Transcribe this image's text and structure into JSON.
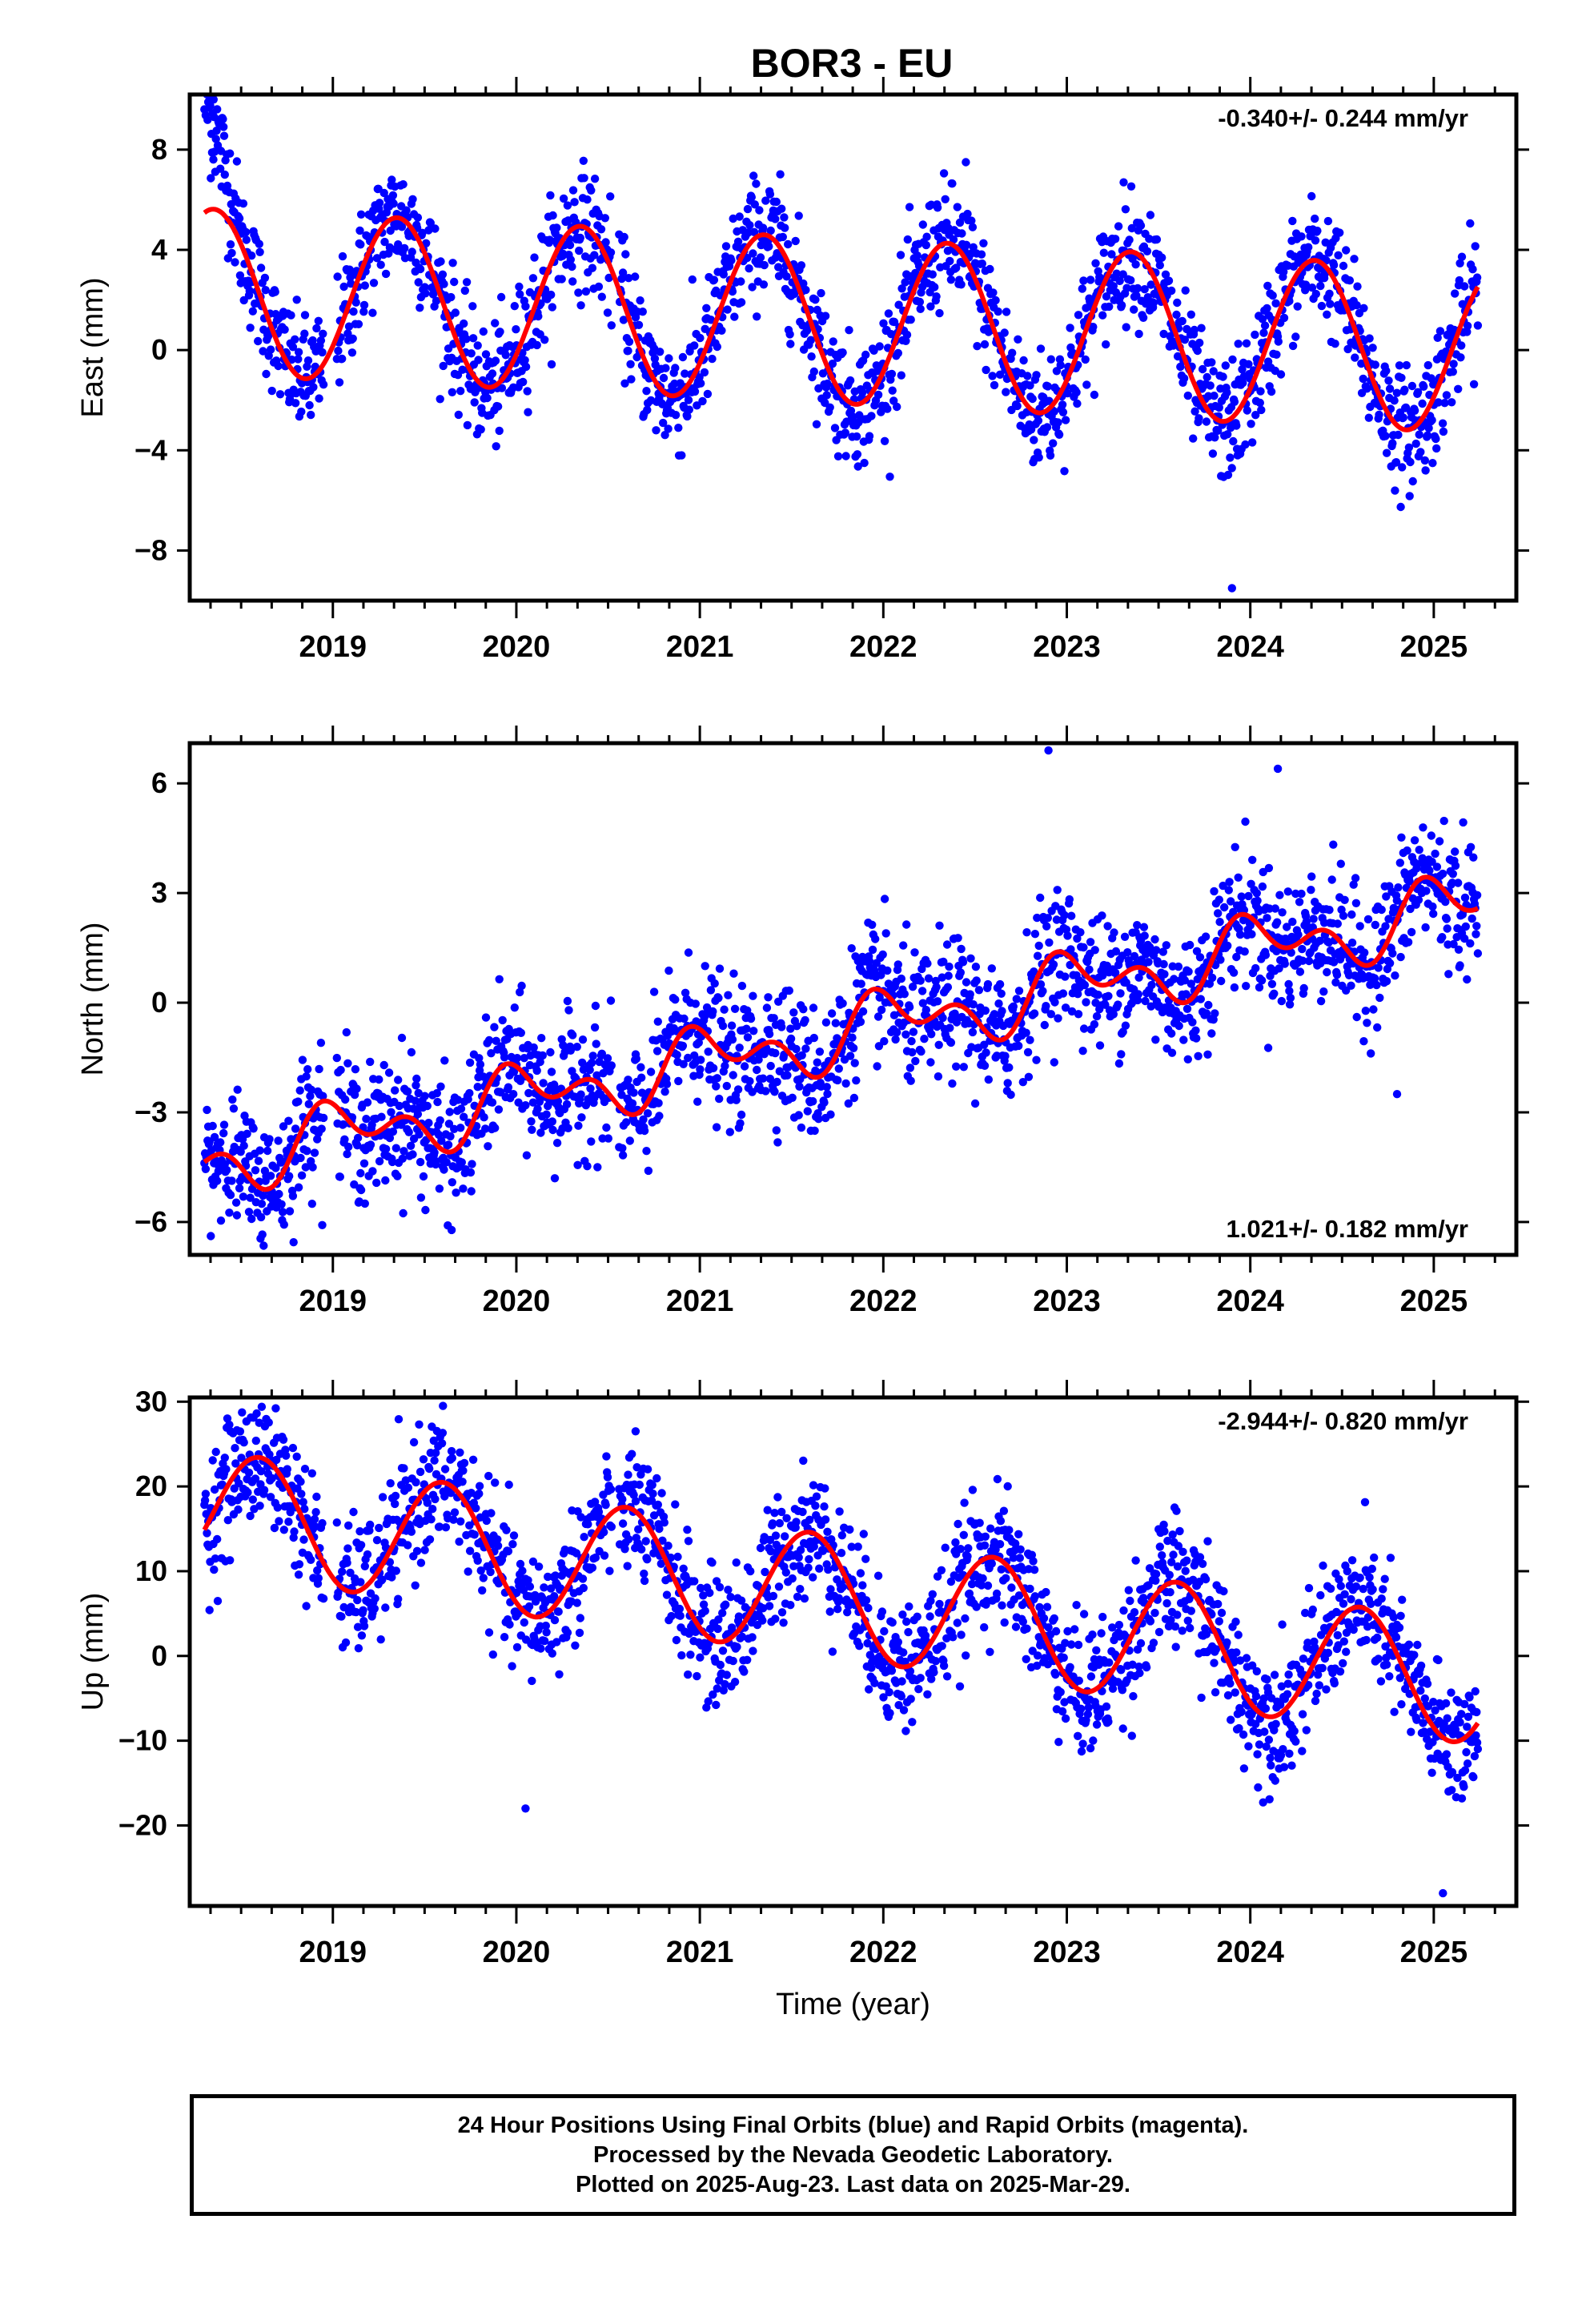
{
  "title": "BOR3 - EU",
  "colors": {
    "points": "#0000ff",
    "fit": "#ff0000",
    "frame": "#000000"
  },
  "chart_data": [
    {
      "type": "scatter",
      "component": "East",
      "ylabel": "East (mm)",
      "xlabel": "",
      "ylim": [
        -10,
        10.2
      ],
      "yticks": [
        -8,
        -4,
        0,
        4,
        8
      ],
      "xlim": [
        2018.22,
        2025.45
      ],
      "xticks": [
        2019,
        2020,
        2021,
        2022,
        2023,
        2024,
        2025
      ],
      "rate_label": "-0.340+/- 0.244 mm/yr",
      "rate_position": "top-right",
      "fit": {
        "trend_mm_per_yr": -0.34,
        "offset_mm": 1.15,
        "annual_amplitude_mm": 3.3,
        "annual_peak_year_fraction": 0.35,
        "semiannual_amplitude_mm": 0.0,
        "semiannual_phase_year_fraction": 0.0
      },
      "scatter_sigma_mm": 1.2,
      "outliers": [
        [
          2023.9,
          -9.5
        ],
        [
          2018.35,
          10.0
        ],
        [
          2022.45,
          7.5
        ]
      ]
    },
    {
      "type": "scatter",
      "component": "North",
      "ylabel": "North (mm)",
      "xlabel": "",
      "ylim": [
        -6.9,
        7.1
      ],
      "yticks": [
        -6,
        -3,
        0,
        3,
        6
      ],
      "xlim": [
        2018.22,
        2025.45
      ],
      "xticks": [
        2019,
        2020,
        2021,
        2022,
        2023,
        2024,
        2025
      ],
      "rate_label": "1.021+/- 0.182 mm/yr",
      "rate_position": "bottom-right",
      "fit": {
        "trend_mm_per_yr": 1.021,
        "offset_mm": -0.82,
        "annual_amplitude_mm": 0.65,
        "annual_peak_year_fraction": 0.05,
        "semiannual_amplitude_mm": 0.55,
        "semiannual_phase_year_fraction": 0.42
      },
      "scatter_sigma_mm": 0.9,
      "outliers": [
        [
          2022.9,
          6.9
        ],
        [
          2024.8,
          -2.5
        ],
        [
          2024.15,
          6.4
        ]
      ]
    },
    {
      "type": "scatter",
      "component": "Up",
      "ylabel": "Up (mm)",
      "xlabel": "Time (year)",
      "ylim": [
        -29.5,
        30.5
      ],
      "yticks": [
        -20,
        -10,
        0,
        10,
        20,
        30
      ],
      "xlim": [
        2018.22,
        2025.45
      ],
      "xticks": [
        2019,
        2020,
        2021,
        2022,
        2023,
        2024,
        2025
      ],
      "rate_label": "-2.944+/- 0.820 mm/yr",
      "rate_position": "top-right",
      "fit": {
        "trend_mm_per_yr": -2.944,
        "offset_mm": 6.8,
        "annual_amplitude_mm": 7.2,
        "annual_peak_year_fraction": 0.6,
        "semiannual_amplitude_mm": 0.0,
        "semiannual_phase_year_fraction": 0.0
      },
      "scatter_sigma_mm": 3.8,
      "outliers": [
        [
          2019.6,
          29.5
        ],
        [
          2020.65,
          26.5
        ],
        [
          2020.05,
          -18.0
        ],
        [
          2025.05,
          -28.0
        ]
      ]
    }
  ],
  "footer": {
    "line1": "24 Hour Positions Using Final Orbits (blue) and Rapid Orbits (magenta).",
    "line2": "Processed by the Nevada Geodetic Laboratory.",
    "line3": "Plotted on 2025-Aug-23. Last data on 2025-Mar-29."
  }
}
